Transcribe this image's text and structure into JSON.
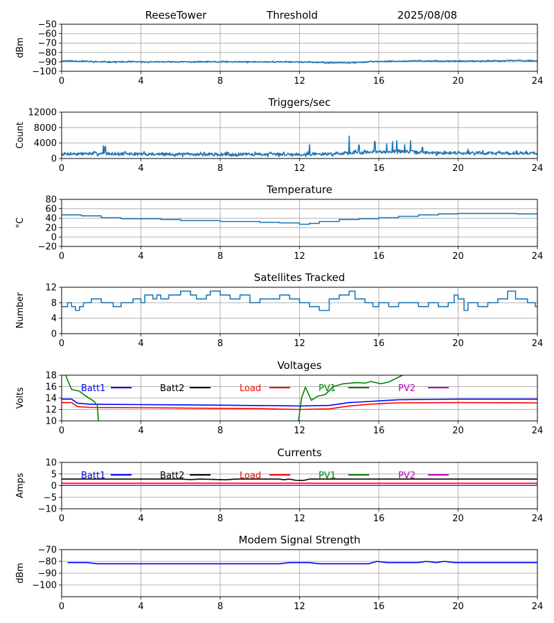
{
  "header": {
    "site": "ReeseTower",
    "mode": "Threshold",
    "date": "2025/08/08"
  },
  "colors": {
    "default": "#1f77b4",
    "batt1": "#0000ff",
    "batt2": "#000000",
    "load": "#ff0000",
    "pv1": "#008000",
    "pv2": "#bf00bf",
    "grid": "#b0b0b0"
  },
  "chart_data": [
    {
      "type": "line",
      "title": "",
      "ylabel": "dBm",
      "xlim": [
        0,
        24
      ],
      "ylim": [
        -100,
        -50
      ],
      "grid": true,
      "x_ticks": [
        "0",
        "4",
        "8",
        "12",
        "16",
        "20",
        "24"
      ],
      "y_ticks": [
        -100,
        -90,
        -80,
        -70,
        -60,
        -50
      ],
      "y_tick_labels": [
        "−100",
        "−90",
        "−80",
        "−70",
        "−60",
        "−50"
      ],
      "series": [
        {
          "color": "default",
          "noise": 0.6,
          "seed": 11,
          "points": [
            [
              0,
              -89
            ],
            [
              1,
              -89.3
            ],
            [
              2,
              -90
            ],
            [
              4,
              -90
            ],
            [
              8,
              -90
            ],
            [
              12,
              -90
            ],
            [
              13.5,
              -91
            ],
            [
              15,
              -90.5
            ],
            [
              16,
              -89.5
            ],
            [
              18,
              -89
            ],
            [
              20,
              -89.3
            ],
            [
              22,
              -89
            ],
            [
              23,
              -88.5
            ],
            [
              24,
              -89
            ]
          ]
        }
      ]
    },
    {
      "type": "line",
      "title": "Triggers/sec",
      "ylabel": "Count",
      "xlim": [
        0,
        24
      ],
      "ylim": [
        0,
        12000
      ],
      "grid": true,
      "x_ticks": [
        "0",
        "4",
        "8",
        "12",
        "16",
        "20",
        "24"
      ],
      "y_ticks": [
        0,
        4000,
        8000,
        12000
      ],
      "y_tick_labels": [
        "0",
        "4000",
        "8000",
        "12000"
      ],
      "series": [
        {
          "color": "default",
          "noise": 380,
          "seed": 7,
          "points": [
            [
              0,
              1200
            ],
            [
              2,
              1300
            ],
            [
              4,
              1150
            ],
            [
              6,
              1100
            ],
            [
              8,
              1050
            ],
            [
              10,
              1100
            ],
            [
              12,
              1100
            ],
            [
              13.5,
              1200
            ],
            [
              14.5,
              1500
            ],
            [
              16,
              1700
            ],
            [
              17,
              1900
            ],
            [
              18,
              1600
            ],
            [
              19,
              1400
            ],
            [
              20,
              1500
            ],
            [
              22,
              1400
            ],
            [
              24,
              1400
            ]
          ],
          "spikes": [
            [
              2.1,
              3300
            ],
            [
              2.2,
              3100
            ],
            [
              12.5,
              3600
            ],
            [
              14.5,
              5800
            ],
            [
              15.0,
              3500
            ],
            [
              15.8,
              4400
            ],
            [
              16.4,
              3800
            ],
            [
              16.7,
              4400
            ],
            [
              16.9,
              4600
            ],
            [
              17.3,
              3600
            ],
            [
              17.6,
              4600
            ],
            [
              18.2,
              2900
            ],
            [
              20.5,
              2400
            ]
          ]
        }
      ]
    },
    {
      "type": "line",
      "title": "Temperature",
      "ylabel": "°C",
      "xlim": [
        0,
        24
      ],
      "ylim": [
        -20,
        80
      ],
      "grid": true,
      "x_ticks": [
        "0",
        "4",
        "8",
        "12",
        "16",
        "20",
        "24"
      ],
      "y_ticks": [
        -20,
        0,
        20,
        40,
        60,
        80
      ],
      "y_tick_labels": [
        "−20",
        "0",
        "20",
        "40",
        "60",
        "80"
      ],
      "series": [
        {
          "color": "default",
          "step": true,
          "points": [
            [
              0,
              47
            ],
            [
              1,
              45
            ],
            [
              2,
              41
            ],
            [
              3,
              39
            ],
            [
              5,
              37
            ],
            [
              6,
              35
            ],
            [
              8,
              33
            ],
            [
              10,
              31
            ],
            [
              11,
              30
            ],
            [
              12,
              27
            ],
            [
              12.5,
              29
            ],
            [
              13,
              33
            ],
            [
              14,
              37
            ],
            [
              15,
              39
            ],
            [
              16,
              41
            ],
            [
              17,
              44
            ],
            [
              18,
              47
            ],
            [
              19,
              49
            ],
            [
              20,
              50
            ],
            [
              21,
              50
            ],
            [
              22,
              50
            ],
            [
              23,
              49
            ],
            [
              24,
              48
            ]
          ]
        }
      ]
    },
    {
      "type": "line",
      "title": "Satellites Tracked",
      "ylabel": "Number",
      "xlim": [
        0,
        24
      ],
      "ylim": [
        0,
        12
      ],
      "grid": true,
      "x_ticks": [
        "0",
        "4",
        "8",
        "12",
        "16",
        "20",
        "24"
      ],
      "y_ticks": [
        0,
        4,
        8,
        12
      ],
      "y_tick_labels": [
        "0",
        "4",
        "8",
        "12"
      ],
      "series": [
        {
          "color": "default",
          "step": true,
          "points": [
            [
              0,
              7
            ],
            [
              0.3,
              8
            ],
            [
              0.5,
              7
            ],
            [
              0.7,
              6
            ],
            [
              0.9,
              7
            ],
            [
              1.1,
              8
            ],
            [
              1.5,
              9
            ],
            [
              2,
              8
            ],
            [
              2.6,
              7
            ],
            [
              3,
              8
            ],
            [
              3.6,
              9
            ],
            [
              4,
              8
            ],
            [
              4.2,
              10
            ],
            [
              4.6,
              9
            ],
            [
              4.8,
              10
            ],
            [
              5.0,
              9
            ],
            [
              5.4,
              10
            ],
            [
              6,
              11
            ],
            [
              6.5,
              10
            ],
            [
              6.8,
              9
            ],
            [
              7.3,
              10
            ],
            [
              7.5,
              11
            ],
            [
              8,
              10
            ],
            [
              8.5,
              9
            ],
            [
              9,
              10
            ],
            [
              9.5,
              8
            ],
            [
              10,
              9
            ],
            [
              11,
              10
            ],
            [
              11.5,
              9
            ],
            [
              12,
              8
            ],
            [
              12.5,
              7
            ],
            [
              13,
              6
            ],
            [
              13.5,
              9
            ],
            [
              14,
              10
            ],
            [
              14.5,
              11
            ],
            [
              14.8,
              9
            ],
            [
              15.3,
              8
            ],
            [
              15.7,
              7
            ],
            [
              16,
              8
            ],
            [
              16.5,
              7
            ],
            [
              17,
              8
            ],
            [
              18,
              7
            ],
            [
              18.5,
              8
            ],
            [
              19,
              7
            ],
            [
              19.5,
              8
            ],
            [
              19.8,
              10
            ],
            [
              20,
              9
            ],
            [
              20.3,
              6
            ],
            [
              20.5,
              8
            ],
            [
              21,
              7
            ],
            [
              21.5,
              8
            ],
            [
              22,
              9
            ],
            [
              22.5,
              11
            ],
            [
              22.9,
              9
            ],
            [
              23.5,
              8
            ],
            [
              23.9,
              7
            ],
            [
              24,
              7
            ]
          ]
        }
      ]
    },
    {
      "type": "line",
      "title": "Voltages",
      "ylabel": "Volts",
      "xlim": [
        0,
        24
      ],
      "ylim": [
        10,
        18
      ],
      "grid": true,
      "x_ticks": [
        "0",
        "4",
        "8",
        "12",
        "16",
        "20",
        "24"
      ],
      "y_ticks": [
        10,
        12,
        14,
        16,
        18
      ],
      "y_tick_labels": [
        "10",
        "12",
        "14",
        "16",
        "18"
      ],
      "legend": [
        {
          "label": "Batt1",
          "color": "batt1"
        },
        {
          "label": "Batt2",
          "color": "batt2"
        },
        {
          "label": "Load",
          "color": "load"
        },
        {
          "label": "PV1",
          "color": "pv1"
        },
        {
          "label": "PV2",
          "color": "pv2"
        }
      ],
      "series": [
        {
          "color": "batt1",
          "points": [
            [
              0,
              13.8
            ],
            [
              0.5,
              13.8
            ],
            [
              0.8,
              13.1
            ],
            [
              1.5,
              12.9
            ],
            [
              2,
              12.9
            ],
            [
              4,
              12.85
            ],
            [
              8,
              12.75
            ],
            [
              11,
              12.65
            ],
            [
              12,
              12.6
            ],
            [
              13.5,
              12.7
            ],
            [
              14.5,
              13.2
            ],
            [
              15.5,
              13.4
            ],
            [
              16.5,
              13.6
            ],
            [
              17,
              13.7
            ],
            [
              20,
              13.8
            ],
            [
              24,
              13.8
            ]
          ]
        },
        {
          "color": "load",
          "points": [
            [
              0,
              13.2
            ],
            [
              0.5,
              13.2
            ],
            [
              0.8,
              12.5
            ],
            [
              1.5,
              12.35
            ],
            [
              4,
              12.3
            ],
            [
              8,
              12.2
            ],
            [
              10,
              12.15
            ],
            [
              11,
              12.05
            ],
            [
              12,
              12.0
            ],
            [
              13.5,
              12.1
            ],
            [
              14.5,
              12.6
            ],
            [
              15.5,
              12.9
            ],
            [
              16.5,
              13.1
            ],
            [
              17,
              13.15
            ],
            [
              20,
              13.2
            ],
            [
              24,
              13.15
            ]
          ]
        },
        {
          "color": "pv1",
          "points": [
            [
              0.2,
              18
            ],
            [
              0.5,
              15.5
            ],
            [
              0.9,
              15.2
            ],
            [
              1.2,
              14.4
            ],
            [
              1.6,
              13.5
            ],
            [
              1.8,
              12.8
            ],
            [
              1.85,
              10.0
            ]
          ]
        },
        {
          "color": "pv1",
          "points": [
            [
              11.95,
              10.0
            ],
            [
              12.1,
              14.0
            ],
            [
              12.3,
              15.9
            ],
            [
              12.6,
              13.6
            ],
            [
              12.9,
              14.3
            ],
            [
              13.3,
              14.6
            ],
            [
              13.7,
              16.0
            ],
            [
              14.2,
              16.5
            ],
            [
              14.9,
              16.7
            ],
            [
              15.3,
              16.6
            ],
            [
              15.6,
              16.9
            ],
            [
              16.1,
              16.5
            ],
            [
              16.5,
              16.8
            ],
            [
              17.2,
              18.0
            ]
          ]
        }
      ]
    },
    {
      "type": "line",
      "title": "Currents",
      "ylabel": "Amps",
      "xlim": [
        0,
        24
      ],
      "ylim": [
        -10,
        10
      ],
      "grid": true,
      "x_ticks": [
        "0",
        "4",
        "8",
        "12",
        "16",
        "20",
        "24"
      ],
      "y_ticks": [
        -10,
        -5,
        0,
        5,
        10
      ],
      "y_tick_labels": [
        "−10",
        "−5",
        "0",
        "5",
        "10"
      ],
      "legend": [
        {
          "label": "Batt1",
          "color": "batt1"
        },
        {
          "label": "Batt2",
          "color": "batt2"
        },
        {
          "label": "Load",
          "color": "load"
        },
        {
          "label": "PV1",
          "color": "pv1"
        },
        {
          "label": "PV2",
          "color": "pv2"
        }
      ],
      "series": [
        {
          "color": "batt2",
          "points": [
            [
              0,
              2.8
            ],
            [
              6,
              2.8
            ],
            [
              6.5,
              2.6
            ],
            [
              7,
              2.8
            ],
            [
              8.3,
              2.5
            ],
            [
              8.8,
              2.8
            ],
            [
              11,
              2.8
            ],
            [
              11.2,
              2.5
            ],
            [
              11.5,
              2.8
            ],
            [
              11.8,
              2.3
            ],
            [
              12.2,
              2.2
            ],
            [
              12.5,
              2.8
            ],
            [
              24,
              2.8
            ]
          ]
        },
        {
          "color": "load",
          "points": [
            [
              0,
              1.0
            ],
            [
              24,
              1.0
            ]
          ]
        },
        {
          "color": "pv2",
          "points": [
            [
              0,
              0.1
            ],
            [
              24,
              0.1
            ]
          ]
        }
      ]
    },
    {
      "type": "line",
      "title": "Modem Signal Strength",
      "ylabel": "dBm",
      "xlim": [
        0,
        24
      ],
      "ylim": [
        -110,
        -70
      ],
      "grid": true,
      "x_ticks": [
        "0",
        "4",
        "8",
        "12",
        "16",
        "20",
        "24"
      ],
      "y_ticks": [
        -100,
        -90,
        -80,
        -70
      ],
      "y_tick_labels": [
        "−100",
        "−90",
        "−80",
        "−70"
      ],
      "series": [
        {
          "color": "batt1",
          "points": [
            [
              0.3,
              -81
            ],
            [
              1.3,
              -81
            ],
            [
              1.8,
              -82
            ],
            [
              11,
              -82
            ],
            [
              11.5,
              -81
            ],
            [
              12.5,
              -81
            ],
            [
              13,
              -82
            ],
            [
              15.5,
              -82
            ],
            [
              15.9,
              -80
            ],
            [
              16.4,
              -81
            ],
            [
              18,
              -81
            ],
            [
              18.4,
              -80
            ],
            [
              18.9,
              -81
            ],
            [
              19.3,
              -80
            ],
            [
              19.8,
              -81
            ],
            [
              24,
              -81
            ]
          ]
        }
      ]
    }
  ]
}
